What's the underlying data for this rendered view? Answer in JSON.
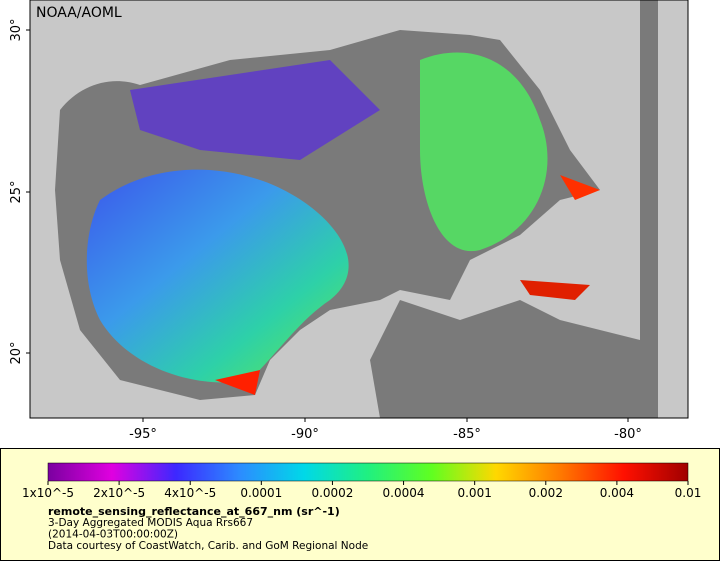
{
  "map": {
    "watermark": "NOAA/AOML",
    "lat_labels": [
      "30°",
      "25°",
      "20°"
    ],
    "lon_labels": [
      "-95°",
      "-90°",
      "-85°",
      "-80°"
    ]
  },
  "colorbar": {
    "tick_labels": [
      "1x10^-5",
      "2x10^-5",
      "4x10^-5",
      "0.0001",
      "0.0002",
      "0.0004",
      "0.001",
      "0.002",
      "0.004",
      "0.01"
    ],
    "colors": [
      "#7a00a0",
      "#e000e0",
      "#3c28ff",
      "#2c8cff",
      "#00d8e8",
      "#20f080",
      "#60ff20",
      "#ffd800",
      "#ff7a00",
      "#ff1000",
      "#a00000"
    ]
  },
  "legend": {
    "title": "remote_sensing_reflectance_at_667_nm (sr^-1)",
    "lines": [
      "3-Day Aggregated MODIS Aqua Rrs667",
      "(2014-04-03T00:00:00Z)",
      "Data courtesy of CoastWatch, Carib. and GoM Regional Node"
    ]
  }
}
